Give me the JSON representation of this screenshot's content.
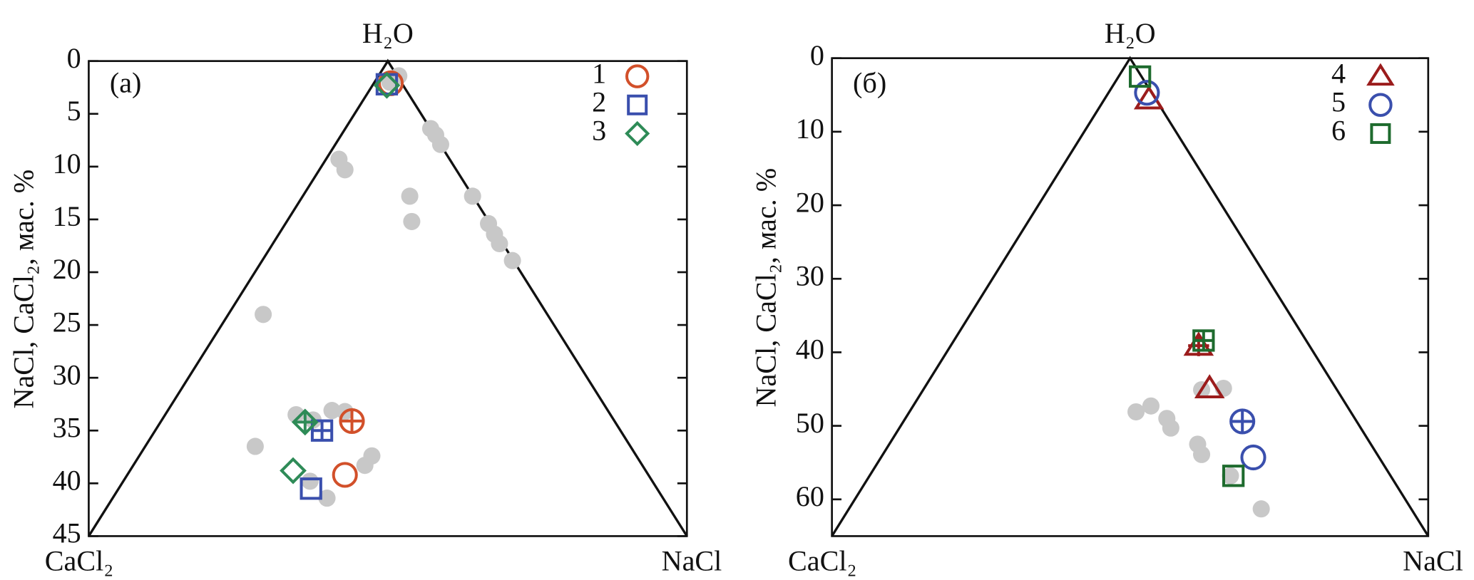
{
  "chart_data": [
    {
      "type": "scatter",
      "annotation": "(a)",
      "top_label": "H₂O",
      "left_label": "CaCl₂",
      "right_label": "NaCl",
      "y_label": "NaCl, CaCl₂, мас. %",
      "ylim": [
        45,
        0
      ],
      "yticks": [
        0,
        5,
        10,
        15,
        20,
        25,
        30,
        35,
        40,
        45
      ],
      "xlim": [
        0,
        60
      ],
      "series": [
        {
          "color": "#c8c8c8",
          "marker": "dot",
          "x": [
            31.1,
            30.2,
            25.1,
            25.7,
            34.3,
            34.8,
            35.3,
            32.2,
            32.4,
            38.5,
            40.1,
            40.7,
            41.2,
            42.5,
            17.5,
            16.7,
            20.8,
            22.5,
            24.4,
            25.7,
            27.7,
            28.4,
            23.9,
            22.2
          ],
          "values": [
            1.4,
            2.0,
            9.3,
            10.3,
            6.4,
            7.0,
            7.9,
            12.8,
            15.2,
            12.8,
            15.4,
            16.4,
            17.3,
            18.9,
            24.0,
            36.5,
            33.5,
            34.0,
            33.1,
            33.2,
            38.3,
            37.4,
            41.4,
            39.8
          ]
        },
        {
          "name": "1",
          "color": "#d2502a",
          "marker": "circle",
          "x": [
            30.3,
            26.4,
            25.7
          ],
          "values": [
            2.1,
            34.1,
            39.2
          ],
          "crossed": [
            false,
            true,
            false
          ]
        },
        {
          "name": "2",
          "color": "#3a4fad",
          "marker": "square",
          "x": [
            29.9,
            23.4,
            22.3
          ],
          "values": [
            2.2,
            35.0,
            40.5
          ],
          "crossed": [
            false,
            true,
            false
          ]
        },
        {
          "name": "3",
          "color": "#2e8b57",
          "marker": "diamond",
          "x": [
            29.9,
            21.7,
            20.5
          ],
          "values": [
            2.3,
            34.2,
            38.8
          ],
          "crossed": [
            false,
            true,
            false
          ]
        }
      ]
    },
    {
      "type": "scatter",
      "annotation": "(б)",
      "top_label": "H₂O",
      "left_label": "CaCl₂",
      "right_label": "NaCl",
      "y_label": "NaCl, CaCl₂, мас. %",
      "ylim": [
        65,
        0
      ],
      "yticks": [
        0,
        10,
        20,
        30,
        40,
        50,
        60
      ],
      "xlim": [
        0,
        60
      ],
      "series": [
        {
          "color": "#c8c8c8",
          "marker": "dot",
          "x": [
            30.6,
            32.1,
            33.7,
            34.1,
            36.8,
            37.2,
            37.2,
            39.4,
            40.1,
            43.2
          ],
          "values": [
            48.1,
            47.3,
            49.0,
            50.3,
            52.5,
            53.9,
            45.1,
            44.9,
            56.8,
            61.3
          ]
        },
        {
          "name": "4",
          "color": "#9b1c1c",
          "marker": "triangle",
          "x": [
            31.9,
            36.9,
            38.0
          ],
          "values": [
            5.6,
            39.1,
            44.9
          ],
          "crossed": [
            false,
            true,
            false
          ]
        },
        {
          "name": "5",
          "color": "#3a4fad",
          "marker": "circle",
          "x": [
            31.7,
            41.3,
            42.4
          ],
          "values": [
            4.7,
            49.4,
            54.3
          ],
          "crossed": [
            false,
            true,
            false
          ]
        },
        {
          "name": "6",
          "color": "#1e6b2e",
          "marker": "square",
          "x": [
            31.0,
            37.4,
            40.4
          ],
          "values": [
            2.5,
            38.4,
            56.8
          ],
          "crossed": [
            false,
            true,
            false
          ]
        }
      ]
    }
  ]
}
